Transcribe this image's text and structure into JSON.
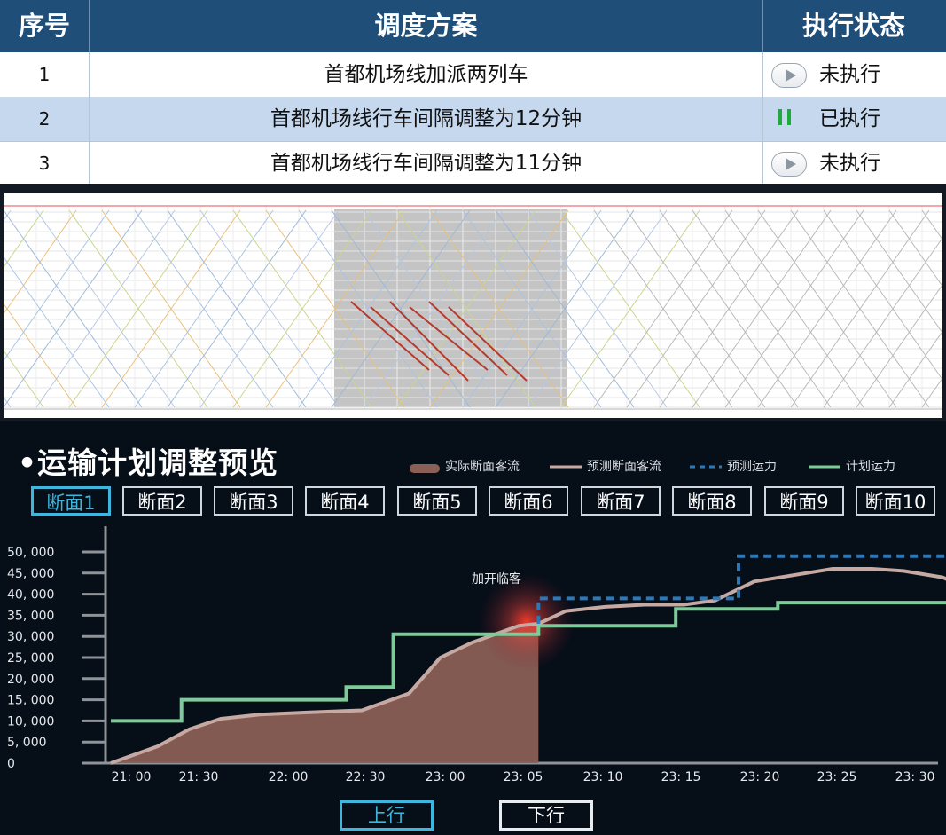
{
  "table": {
    "headers": [
      "序号",
      "调度方案",
      "执行状态"
    ],
    "rows": [
      {
        "num": "1",
        "plan": "首都机场线加派两列车",
        "state": "未执行",
        "state_icon": "play-icon"
      },
      {
        "num": "2",
        "plan": "首都机场线行车间隔调整为12分钟",
        "state": "已执行",
        "state_icon": "pause-icon"
      },
      {
        "num": "3",
        "plan": "首都机场线行车间隔调整为11分钟",
        "state": "未执行",
        "state_icon": "play-icon"
      }
    ]
  },
  "panel": {
    "title": "•运输计划调整预览",
    "legend": [
      "实际断面客流",
      "预测断面客流",
      "预测运力",
      "计划运力"
    ],
    "section_tabs": [
      "断面1",
      "断面2",
      "断面3",
      "断面4",
      "断面5",
      "断面6",
      "断面7",
      "断面8",
      "断面9",
      "断面10"
    ],
    "active_tab_index": 0,
    "directions": [
      "上行",
      "下行"
    ],
    "active_direction_index": 0
  },
  "colors": {
    "header_bg": "#1f4e79",
    "alt_row": "#c5d8ee",
    "panel_bg": "#060e18",
    "actual_area": "#8a5f55",
    "forecast_line": "#c7a9a3",
    "forecast_capacity": "#2d79b8",
    "planned_capacity": "#7dcb98",
    "active_accent": "#3fb6de"
  },
  "chart_data": {
    "type": "line",
    "x_tick_labels": [
      "21: 00",
      "21: 30",
      "22: 00",
      "22: 30",
      "23: 00",
      "23: 05",
      "23: 10",
      "23: 15",
      "23: 20",
      "23: 25",
      "23: 30"
    ],
    "y_tick_labels": [
      "0",
      "5, 000",
      "10, 000",
      "15, 000",
      "20, 000",
      "25, 000",
      "30, 000",
      "35, 000",
      "40, 000",
      "45, 000",
      "50, 000"
    ],
    "ylim": [
      0,
      50000
    ],
    "annotation": "加开临客",
    "series": [
      {
        "name": "实际断面客流",
        "style": "area",
        "points": [
          [
            0.0,
            0
          ],
          [
            0.6,
            4000
          ],
          [
            1.0,
            8000
          ],
          [
            1.4,
            10500
          ],
          [
            1.9,
            11500
          ],
          [
            2.5,
            12000
          ],
          [
            3.2,
            12500
          ],
          [
            3.8,
            16500
          ],
          [
            4.2,
            25000
          ],
          [
            4.6,
            28500
          ],
          [
            5.2,
            32500
          ],
          [
            5.45,
            33000
          ]
        ]
      },
      {
        "name": "预测断面客流",
        "style": "line",
        "points": [
          [
            0.0,
            0
          ],
          [
            0.6,
            4000
          ],
          [
            1.0,
            8000
          ],
          [
            1.4,
            10500
          ],
          [
            1.9,
            11500
          ],
          [
            2.5,
            12000
          ],
          [
            3.2,
            12500
          ],
          [
            3.8,
            16500
          ],
          [
            4.2,
            25000
          ],
          [
            4.6,
            28500
          ],
          [
            5.2,
            32500
          ],
          [
            5.45,
            33000
          ],
          [
            5.8,
            36000
          ],
          [
            6.3,
            37000
          ],
          [
            6.8,
            37500
          ],
          [
            7.3,
            37500
          ],
          [
            7.7,
            38500
          ],
          [
            8.2,
            43000
          ],
          [
            8.7,
            44500
          ],
          [
            9.2,
            46000
          ],
          [
            9.7,
            46000
          ],
          [
            10.1,
            45500
          ],
          [
            10.6,
            44000
          ],
          [
            10.95,
            41000
          ],
          [
            11.15,
            0
          ]
        ]
      },
      {
        "name": "预测运力",
        "style": "dashed",
        "points": [
          [
            5.45,
            33000
          ],
          [
            5.45,
            39000
          ],
          [
            8.0,
            39000
          ],
          [
            8.0,
            49000
          ],
          [
            11.2,
            49000
          ],
          [
            11.2,
            33000
          ]
        ]
      },
      {
        "name": "计划运力",
        "style": "step",
        "points": [
          [
            0.0,
            10000
          ],
          [
            0.9,
            10000
          ],
          [
            0.9,
            15000
          ],
          [
            3.0,
            15000
          ],
          [
            3.0,
            18000
          ],
          [
            3.6,
            18000
          ],
          [
            3.6,
            30500
          ],
          [
            5.45,
            30500
          ],
          [
            5.45,
            32500
          ],
          [
            7.2,
            32500
          ],
          [
            7.2,
            36500
          ],
          [
            8.5,
            36500
          ],
          [
            8.5,
            38000
          ],
          [
            11.2,
            38000
          ],
          [
            11.2,
            32000
          ]
        ]
      }
    ]
  }
}
